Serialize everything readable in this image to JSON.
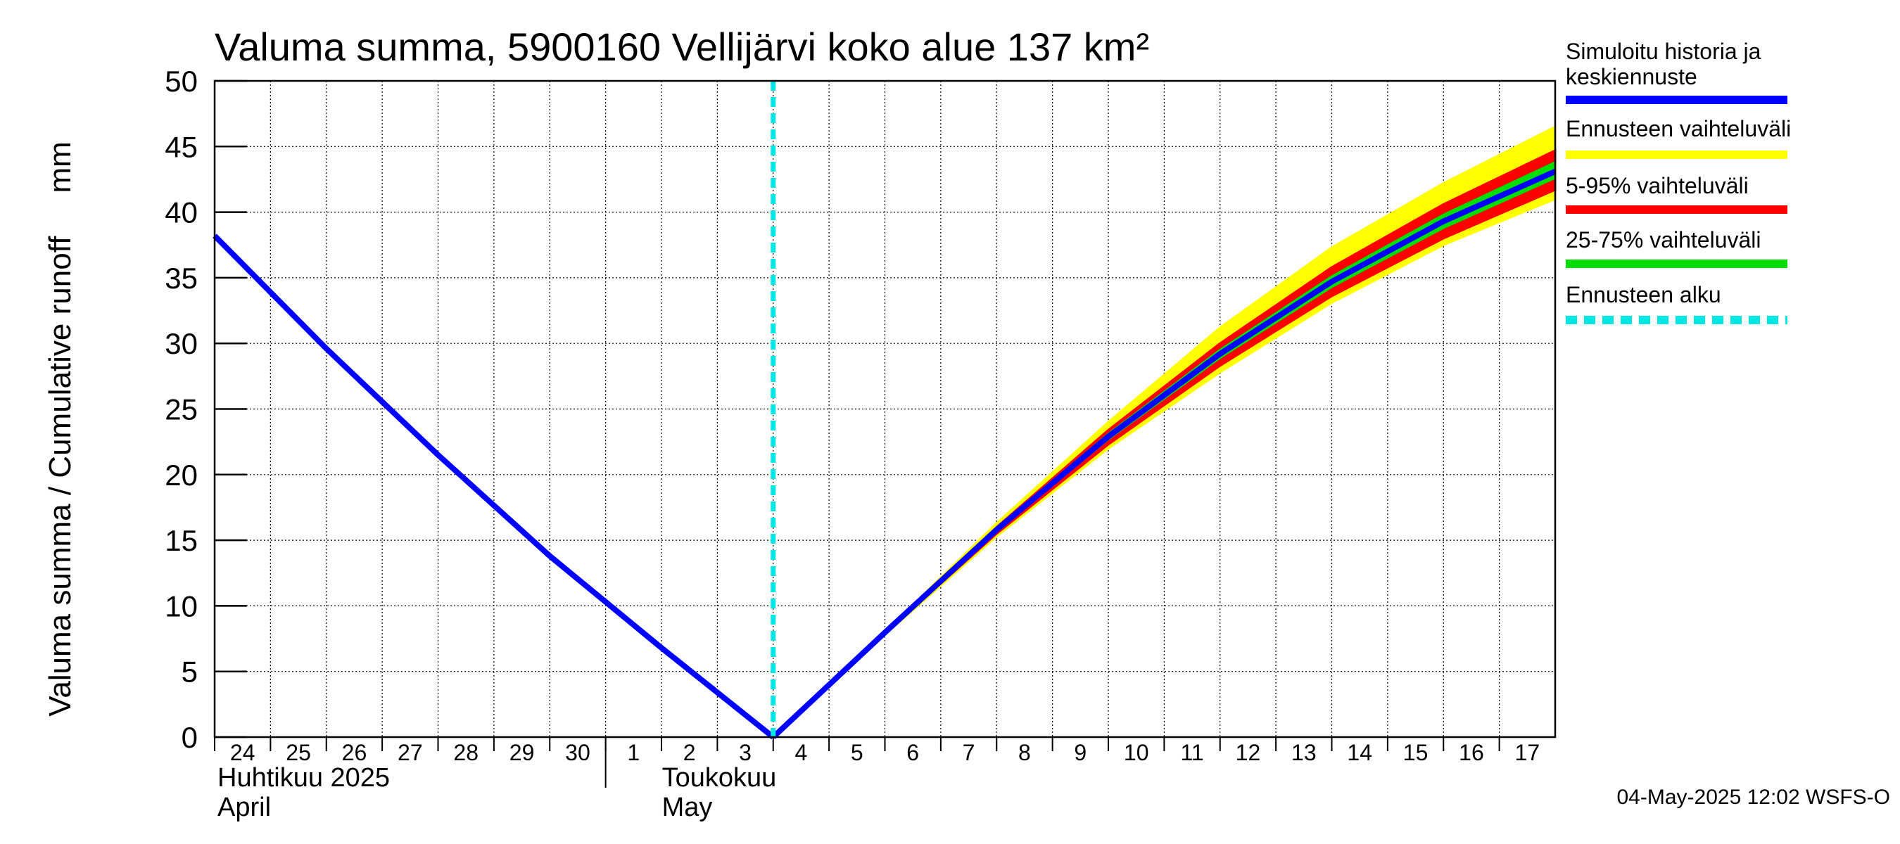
{
  "chart_data": {
    "type": "line",
    "title": "Valuma summa, 5900160 Vellijärvi koko alue 137 km²",
    "ylabel": "Valuma summa / Cumulative runoff     mm",
    "ylim": [
      0,
      50
    ],
    "yticks": [
      "0",
      "5",
      "10",
      "15",
      "20",
      "25",
      "30",
      "35",
      "40",
      "45",
      "50"
    ],
    "xlim": [
      "2025-04-24",
      "2025-05-18"
    ],
    "x_ticks": [
      "24",
      "25",
      "26",
      "27",
      "28",
      "29",
      "30",
      "1",
      "2",
      "3",
      "4",
      "5",
      "6",
      "7",
      "8",
      "9",
      "10",
      "11",
      "12",
      "13",
      "14",
      "15",
      "16",
      "17"
    ],
    "month_labels": [
      {
        "fi": "Huhtikuu  2025",
        "en": "April"
      },
      {
        "fi": "Toukokuu",
        "en": "May"
      }
    ],
    "grid": true,
    "legend_position": "right",
    "forecast_start": "2025-05-04",
    "history": {
      "name": "Simuloitu historia ja keskiennuste",
      "x": [
        "2025-04-24",
        "2025-04-26",
        "2025-04-28",
        "2025-04-30",
        "2025-05-02",
        "2025-05-04"
      ],
      "y": [
        38.2,
        29.6,
        21.5,
        13.8,
        6.8,
        0.0
      ]
    },
    "forecast_x": [
      "2025-05-04",
      "2025-05-06",
      "2025-05-08",
      "2025-05-10",
      "2025-05-12",
      "2025-05-14",
      "2025-05-16",
      "2025-05-18"
    ],
    "series": [
      {
        "name": "Ennusteen vaihteluväli",
        "color": "#ffff00",
        "lower": [
          0.0,
          7.8,
          15.3,
          22.0,
          27.8,
          33.1,
          37.5,
          41.0
        ],
        "upper": [
          0.0,
          8.0,
          16.3,
          24.0,
          31.2,
          37.3,
          42.2,
          46.5
        ]
      },
      {
        "name": "5-95% vaihteluväli",
        "color": "#ff0000",
        "lower": [
          0.0,
          7.9,
          15.5,
          22.3,
          28.3,
          33.6,
          38.0,
          41.7
        ],
        "upper": [
          0.0,
          8.0,
          16.0,
          23.4,
          30.0,
          35.8,
          40.6,
          44.7
        ]
      },
      {
        "name": "25-75% vaihteluväli",
        "color": "#00dd00",
        "lower": [
          0.0,
          7.95,
          15.7,
          22.7,
          28.9,
          34.3,
          38.8,
          42.6
        ],
        "upper": [
          0.0,
          8.0,
          15.9,
          23.1,
          29.5,
          35.1,
          39.8,
          43.8
        ]
      },
      {
        "name": "Simuloitu historia ja keskiennuste",
        "color": "#0000ff",
        "values": [
          0.0,
          7.97,
          15.8,
          22.9,
          29.2,
          34.7,
          39.3,
          43.1
        ]
      }
    ],
    "forecast_line": {
      "name": "Ennusteen alku",
      "color": "#00e5e5"
    },
    "legend": [
      {
        "label": "Simuloitu historia ja keskiennuste",
        "color": "#0000ff",
        "style": "solid"
      },
      {
        "label": "Ennusteen vaihteluväli",
        "color": "#ffff00",
        "style": "solid"
      },
      {
        "label": "5-95% vaihteluväli",
        "color": "#ff0000",
        "style": "solid"
      },
      {
        "label": "25-75% vaihteluväli",
        "color": "#00dd00",
        "style": "solid"
      },
      {
        "label": "Ennusteen alku",
        "color": "#00e5e5",
        "style": "dashed"
      }
    ],
    "footer": "04-May-2025 12:02 WSFS-O"
  }
}
